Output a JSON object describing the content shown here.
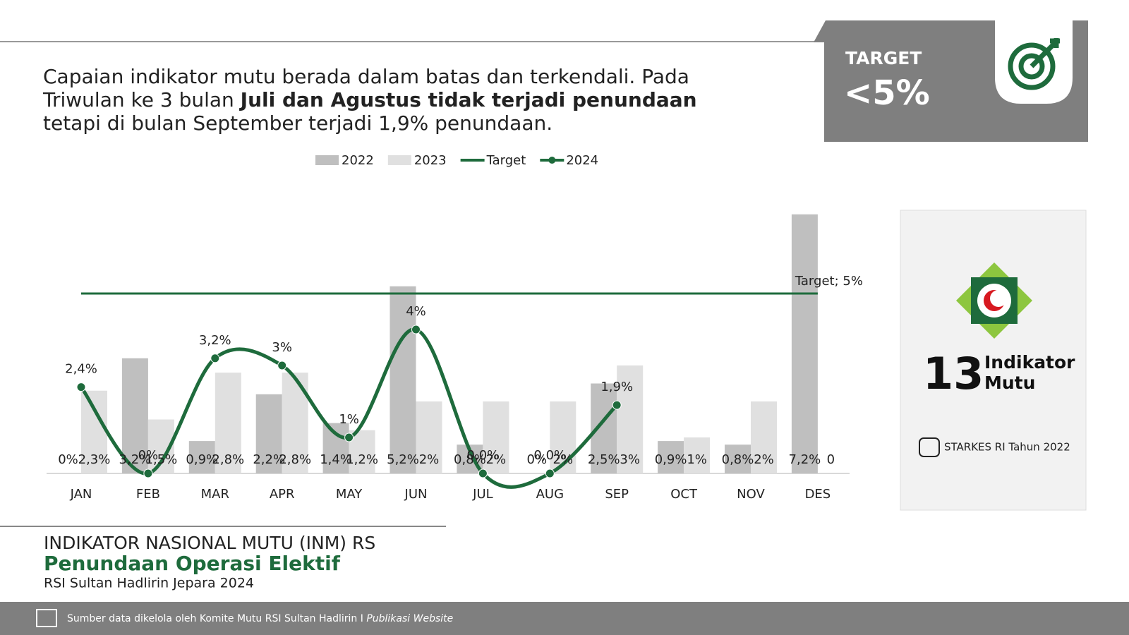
{
  "header": {
    "description": [
      "Capaian indikator mutu berada dalam batas dan terkendali. Pada Triwulan ke 3 bulan ",
      "Juli dan Agustus tidak terjadi penundaan",
      " tetapi di bulan September terjadi 1,9% penundaan."
    ]
  },
  "target_box": {
    "label": "TARGET",
    "value": "<5%"
  },
  "card": {
    "number": "13",
    "text": [
      "Indikator",
      "Mutu"
    ],
    "source": "STARKES RI Tahun 2022"
  },
  "footer_title": {
    "line1": "INDIKATOR NASIONAL MUTU (INM) RS",
    "line2": "Penundaan Operasi Elektif",
    "line3": "RSI Sultan Hadlirin Jepara 2024"
  },
  "footer": {
    "text": "Sumber data dikelola oleh Komite Mutu RSI Sultan Hadlirin I ",
    "italic": "Publikasi Website"
  },
  "chart_data": {
    "type": "bar",
    "categories": [
      "JAN",
      "FEB",
      "MAR",
      "APR",
      "MAY",
      "JUN",
      "JUL",
      "AUG",
      "SEP",
      "OCT",
      "NOV",
      "DES"
    ],
    "ylim": [
      0,
      8
    ],
    "series": [
      {
        "name": "2022",
        "color": "#bfbfbf",
        "values": [
          0,
          3.2,
          0.9,
          2.2,
          1.4,
          5.2,
          0.8,
          0,
          2.5,
          0.9,
          0.8,
          7.2
        ],
        "value_labels": [
          "0%",
          "3,2%",
          "0,9%",
          "2,2%",
          "1,4%",
          "5,2%",
          "0,8%",
          "0%",
          "2,5%",
          "0,9%",
          "0,8%",
          "7,2%"
        ]
      },
      {
        "name": "2023",
        "color": "#e0e0e0",
        "values": [
          2.3,
          1.5,
          2.8,
          2.8,
          1.2,
          2,
          2,
          2,
          3,
          1,
          2,
          0
        ],
        "value_labels": [
          "2,3%",
          "1,5%",
          "2,8%",
          "2,8%",
          "1,2%",
          "2%",
          "2%",
          "2%",
          "3%",
          "1%",
          "2%",
          "0"
        ]
      },
      {
        "name": "Target",
        "color": "#1e6b3c",
        "type": "line",
        "values": [
          5,
          5,
          5,
          5,
          5,
          5,
          5,
          5,
          5,
          5,
          5,
          5
        ],
        "value_labels": [
          null,
          null,
          null,
          null,
          null,
          null,
          null,
          null,
          null,
          null,
          null,
          "Target; 5%"
        ]
      },
      {
        "name": "2024",
        "color": "#1e6b3c",
        "type": "line",
        "markers": true,
        "smooth": true,
        "values": [
          2.4,
          0,
          3.2,
          3,
          1,
          4,
          0.0,
          0.0,
          1.9,
          null,
          null,
          null
        ],
        "value_labels": [
          "2,4%",
          "0%",
          "3,2%",
          "3%",
          "1%",
          "4%",
          "0,0%",
          "0,0%",
          "1,9%",
          null,
          null,
          null
        ]
      }
    ]
  }
}
